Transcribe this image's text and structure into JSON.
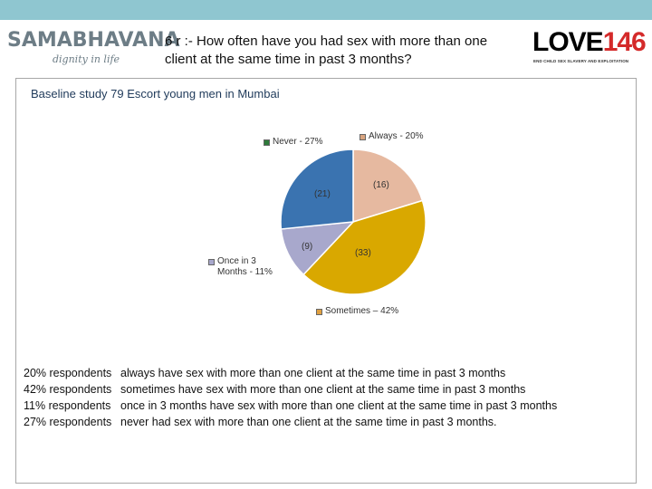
{
  "header": {
    "logo_left_name": "SAMABHAVANA",
    "logo_left_tagline": "dignity in life",
    "title": "6 r :- How often have you had sex with more than one client at the same time in past 3 months?",
    "logo_right_word": "LOVE",
    "logo_right_number": "146",
    "logo_right_sub": "END CHILD SEX SLAVERY AND EXPLOITATION"
  },
  "chart_data": {
    "type": "pie",
    "subtitle": "Baseline study 79 Escort young men in Mumbai",
    "slices": [
      {
        "label": "Always - 20%",
        "count_label": "(16)",
        "value": 16,
        "color": "#e6b9a0"
      },
      {
        "label": "Sometimes – 42%",
        "count_label": "(33)",
        "value": 33,
        "color": "#d9a800"
      },
      {
        "label": "Once in 3 Months - 11%",
        "count_label": "(9)",
        "value": 9,
        "color": "#a8a8cc"
      },
      {
        "label": "Never - 27%",
        "count_label": "(21)",
        "value": 21,
        "color": "#3a73b0"
      }
    ],
    "legend_swatch_colors": {
      "always": "#d9a580",
      "sometimes": "#e0a040",
      "once": "#a8a8cc",
      "never": "#2e7a3a"
    }
  },
  "summary": [
    {
      "pct": "20% respondents",
      "text": "always have sex with more than one client at the same time in past 3 months"
    },
    {
      "pct": "42% respondents",
      "text": "sometimes have sex with more than one client at the same time in past 3 months"
    },
    {
      "pct": "11% respondents",
      "text": "once in 3 months have sex with more than one client at the same time in past 3 months"
    },
    {
      "pct": "27% respondents",
      "text": "never had sex with more than one client at the same time in past 3 months."
    }
  ]
}
